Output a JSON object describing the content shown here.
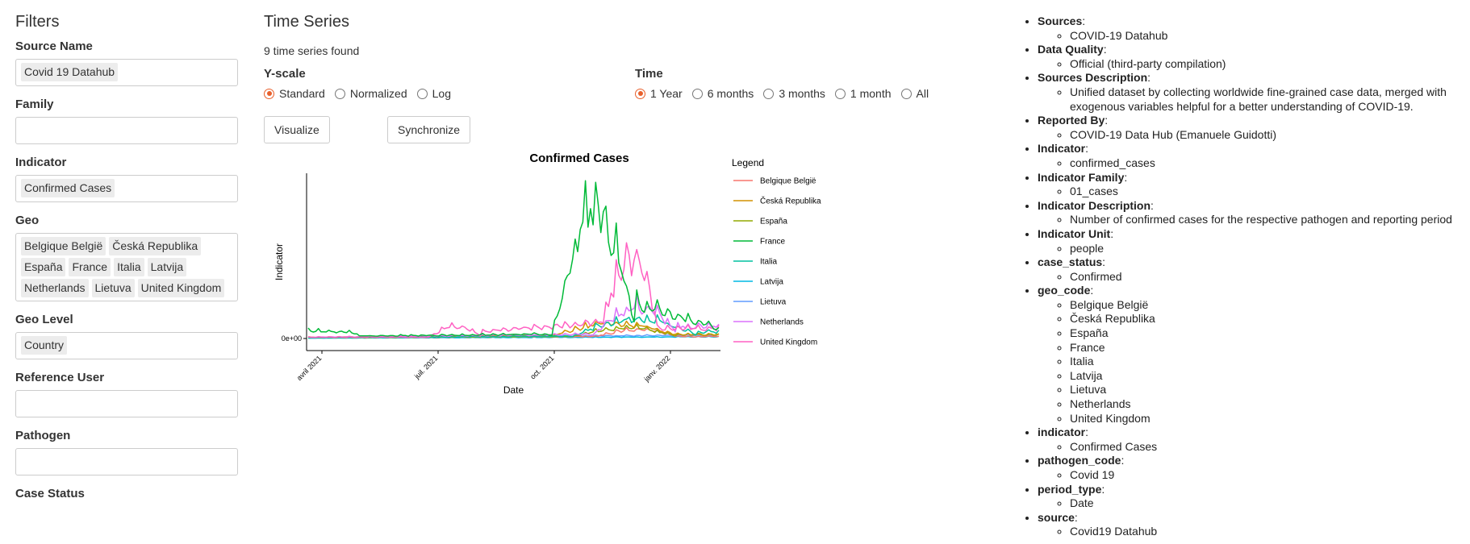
{
  "filters": {
    "title": "Filters",
    "source_name": {
      "label": "Source Name",
      "values": [
        "Covid 19 Datahub"
      ]
    },
    "family": {
      "label": "Family",
      "values": []
    },
    "indicator": {
      "label": "Indicator",
      "values": [
        "Confirmed Cases"
      ]
    },
    "geo": {
      "label": "Geo",
      "values": [
        "Belgique België",
        "Česká Republika",
        "España",
        "France",
        "Italia",
        "Latvija",
        "Netherlands",
        "Lietuva",
        "United Kingdom"
      ]
    },
    "geo_level": {
      "label": "Geo Level",
      "values": [
        "Country"
      ]
    },
    "reference_user": {
      "label": "Reference User",
      "values": []
    },
    "pathogen": {
      "label": "Pathogen",
      "values": []
    },
    "case_status": {
      "label": "Case Status"
    }
  },
  "timeseries": {
    "title": "Time Series",
    "found_text": "9 time series found",
    "yscale": {
      "label": "Y-scale",
      "options": [
        "Standard",
        "Normalized",
        "Log"
      ],
      "selected": "Standard"
    },
    "time": {
      "label": "Time",
      "options": [
        "1 Year",
        "6 months",
        "3 months",
        "1 month",
        "All"
      ],
      "selected": "1 Year"
    },
    "visualize_label": "Visualize",
    "synchronize_label": "Synchronize"
  },
  "chart_data": {
    "type": "line",
    "title": "Confirmed Cases",
    "xlabel": "Date",
    "ylabel": "Indicator",
    "x_ticks": [
      "avril 2021",
      "juil. 2021",
      "oct. 2021",
      "janv. 2022"
    ],
    "y_ticks": [
      "0e+00"
    ],
    "legend_title": "Legend",
    "legend_position": "right",
    "grid": false,
    "series": [
      {
        "name": "Belgique België",
        "color": "#f8766d"
      },
      {
        "name": "Česká Republika",
        "color": "#d39200"
      },
      {
        "name": "España",
        "color": "#93aa00"
      },
      {
        "name": "France",
        "color": "#00ba38"
      },
      {
        "name": "Italia",
        "color": "#00c19f"
      },
      {
        "name": "Latvija",
        "color": "#00b9e3"
      },
      {
        "name": "Lietuva",
        "color": "#619cff"
      },
      {
        "name": "Netherlands",
        "color": "#db72fb"
      },
      {
        "name": "United Kingdom",
        "color": "#ff61c3"
      }
    ]
  },
  "metadata": [
    {
      "key": "Sources",
      "values": [
        "COVID-19 Datahub"
      ]
    },
    {
      "key": "Data Quality",
      "values": [
        "Official (third-party compilation)"
      ]
    },
    {
      "key": "Sources Description",
      "values": [
        "Unified dataset by collecting worldwide fine-grained case data, merged with exogenous variables helpful for a better understanding of COVID-19."
      ]
    },
    {
      "key": "Reported By",
      "values": [
        "COVID-19 Data Hub (Emanuele Guidotti)"
      ]
    },
    {
      "key": "Indicator",
      "values": [
        "confirmed_cases"
      ]
    },
    {
      "key": "Indicator Family",
      "values": [
        "01_cases"
      ]
    },
    {
      "key": "Indicator Description",
      "values": [
        "Number of confirmed cases for the respective pathogen and reporting period"
      ]
    },
    {
      "key": "Indicator Unit",
      "values": [
        "people"
      ]
    },
    {
      "key": "case_status",
      "values": [
        "Confirmed"
      ]
    },
    {
      "key": "geo_code",
      "values": [
        "Belgique België",
        "Česká Republika",
        "España",
        "France",
        "Italia",
        "Latvija",
        "Lietuva",
        "Netherlands",
        "United Kingdom"
      ]
    },
    {
      "key": "indicator",
      "values": [
        "Confirmed Cases"
      ]
    },
    {
      "key": "pathogen_code",
      "values": [
        "Covid 19"
      ]
    },
    {
      "key": "period_type",
      "values": [
        "Date"
      ]
    },
    {
      "key": "source",
      "values": [
        "Covid19 Datahub"
      ]
    }
  ]
}
